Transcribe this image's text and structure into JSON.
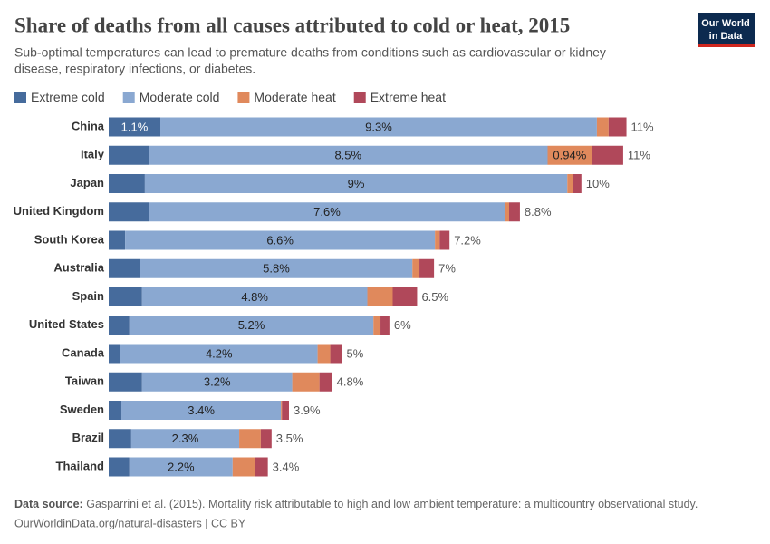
{
  "chart_data": {
    "type": "stacked-bar-horizontal",
    "title": "Share of deaths from all causes attributed to cold or heat, 2015",
    "subtitle": [
      "Sub-optimal temperatures can lead to premature deaths from conditions such as cardiovascular or kidney",
      "disease, respiratory infections, or diabetes."
    ],
    "logo": [
      "Our World",
      "in Data"
    ],
    "categories": [
      "China",
      "Italy",
      "Japan",
      "United Kingdom",
      "South Korea",
      "Australia",
      "Spain",
      "United States",
      "Canada",
      "Taiwan",
      "Sweden",
      "Brazil",
      "Thailand"
    ],
    "series": [
      {
        "name": "Extreme cold",
        "color": "#466b9c",
        "values": [
          1.1,
          0.85,
          0.77,
          0.85,
          0.35,
          0.67,
          0.71,
          0.44,
          0.25,
          0.71,
          0.27,
          0.48,
          0.44
        ],
        "value_labels": [
          "1.1%",
          null,
          null,
          null,
          null,
          null,
          null,
          null,
          null,
          null,
          null,
          null,
          null
        ]
      },
      {
        "name": "Moderate cold",
        "color": "#8aa8d1",
        "values": [
          9.3,
          8.5,
          9,
          7.6,
          6.6,
          5.8,
          4.8,
          5.2,
          4.2,
          3.2,
          3.4,
          2.3,
          2.2
        ],
        "value_labels": [
          "9.3%",
          "8.5%",
          "9%",
          "7.6%",
          "6.6%",
          "5.8%",
          "4.8%",
          "5.2%",
          "4.2%",
          "3.2%",
          "3.4%",
          "2.3%",
          "2.2%"
        ]
      },
      {
        "name": "Moderate heat",
        "color": "#e0895c",
        "values": [
          0.25,
          0.94,
          0.13,
          0.08,
          0.1,
          0.15,
          0.54,
          0.15,
          0.27,
          0.58,
          0.02,
          0.46,
          0.48
        ],
        "value_labels": [
          null,
          "0.94%",
          null,
          null,
          null,
          null,
          null,
          null,
          null,
          null,
          null,
          null,
          null
        ]
      },
      {
        "name": "Extreme heat",
        "color": "#b0485a",
        "values": [
          0.38,
          0.67,
          0.17,
          0.23,
          0.21,
          0.31,
          0.52,
          0.19,
          0.25,
          0.27,
          0.15,
          0.23,
          0.27
        ],
        "value_labels": [
          null,
          null,
          null,
          null,
          null,
          null,
          null,
          null,
          null,
          null,
          null,
          null,
          null
        ]
      }
    ],
    "totals": [
      11,
      11,
      10,
      8.8,
      7.2,
      7,
      6.5,
      6,
      5,
      4.8,
      3.9,
      3.5,
      3.4
    ],
    "total_labels": [
      "11%",
      "11%",
      "10%",
      "8.8%",
      "7.2%",
      "7%",
      "6.5%",
      "6%",
      "5%",
      "4.8%",
      "3.9%",
      "3.5%",
      "3.4%"
    ],
    "source_label": "Data source:",
    "source_text": "Gasparrini et al. (2015). Mortality risk attributable to high and low ambient temperature: a multicountry observational study.",
    "url_line": "OurWorldinData.org/natural-disasters | CC BY"
  }
}
